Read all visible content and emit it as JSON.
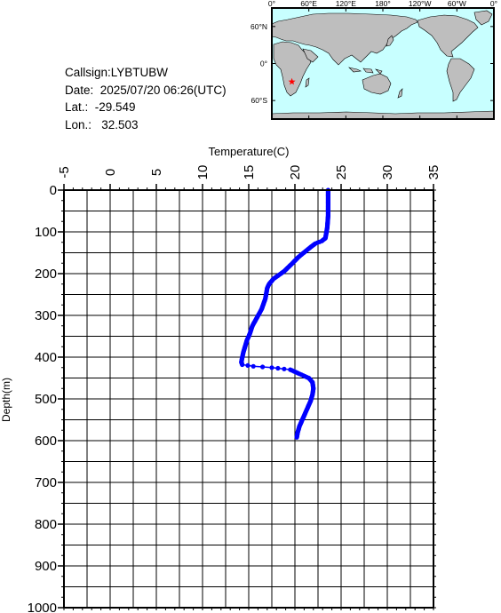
{
  "info": {
    "callsign": "Callsign:LYBTUBW",
    "date": "Date:  2025/07/20 06:26(UTC)",
    "lat": "Lat.:  -29.549",
    "lon": "Lon.:   32.503"
  },
  "map": {
    "lon_labels": [
      "0°",
      "60°E",
      "120°E",
      "180°",
      "120°W",
      "60°W",
      "0°"
    ],
    "lat_labels": [
      "60°N",
      "0°",
      "60°S"
    ],
    "station": {
      "lat": -29.549,
      "lon": 32.503
    },
    "colors": {
      "ocean": "#c8ffff",
      "land": "#bebebe",
      "marker": "#ff0000"
    }
  },
  "chart_data": {
    "type": "line",
    "title": "",
    "xlabel": "Temperature(C)",
    "ylabel": "Depth(m)",
    "xlim": [
      -5,
      35
    ],
    "ylim": [
      0,
      1000
    ],
    "y_inverted": true,
    "x_ticks": [
      "-5",
      "0",
      "5",
      "10",
      "15",
      "20",
      "25",
      "30",
      "35"
    ],
    "y_ticks": [
      "0",
      "100",
      "200",
      "300",
      "400",
      "500",
      "600",
      "700",
      "800",
      "900",
      "1000"
    ],
    "grid": true,
    "series_color": "#0000ff",
    "series": [
      {
        "temperature": [
          23.6,
          23.6,
          23.6,
          23.5,
          23.3,
          22.9,
          22.2,
          21.5,
          20.4,
          19.6,
          18.8,
          17.7,
          17.2,
          17.0,
          16.8,
          16.4,
          15.9,
          15.4,
          15.1,
          14.8,
          14.6,
          14.4,
          14.2,
          14.3,
          15.5,
          17.5,
          19.5,
          20.5,
          21.5,
          21.9,
          22.0,
          21.9,
          21.7,
          21.4,
          21.1,
          20.8,
          20.5,
          20.3,
          20.2
        ],
        "depth": [
          0,
          30,
          60,
          90,
          115,
          122,
          128,
          140,
          160,
          178,
          195,
          212,
          225,
          235,
          260,
          285,
          305,
          325,
          345,
          360,
          375,
          390,
          412,
          418,
          422,
          425,
          430,
          440,
          450,
          460,
          475,
          490,
          505,
          520,
          535,
          550,
          565,
          580,
          592
        ]
      }
    ]
  }
}
